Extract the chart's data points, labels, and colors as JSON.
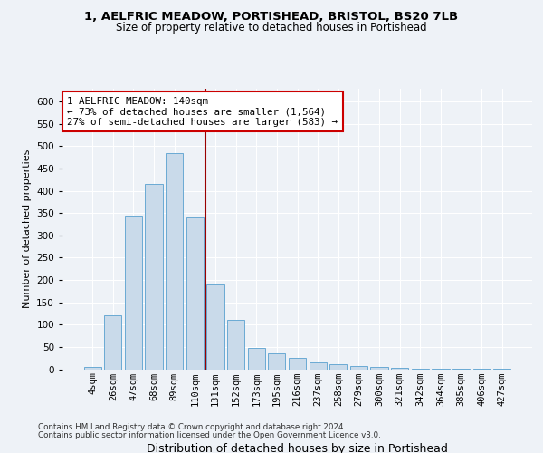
{
  "title1": "1, AELFRIC MEADOW, PORTISHEAD, BRISTOL, BS20 7LB",
  "title2": "Size of property relative to detached houses in Portishead",
  "xlabel": "Distribution of detached houses by size in Portishead",
  "ylabel": "Number of detached properties",
  "categories": [
    "4sqm",
    "26sqm",
    "47sqm",
    "68sqm",
    "89sqm",
    "110sqm",
    "131sqm",
    "152sqm",
    "173sqm",
    "195sqm",
    "216sqm",
    "237sqm",
    "258sqm",
    "279sqm",
    "300sqm",
    "321sqm",
    "342sqm",
    "364sqm",
    "385sqm",
    "406sqm",
    "427sqm"
  ],
  "values": [
    5,
    120,
    345,
    415,
    485,
    340,
    190,
    110,
    48,
    35,
    25,
    15,
    12,
    8,
    6,
    3,
    2,
    1,
    1,
    1,
    1
  ],
  "bar_color": "#c9daea",
  "bar_edge_color": "#6aaad4",
  "bar_edge_width": 0.7,
  "vline_x": 5.5,
  "annotation_text": "1 AELFRIC MEADOW: 140sqm\n← 73% of detached houses are smaller (1,564)\n27% of semi-detached houses are larger (583) →",
  "annotation_box_color": "#ffffff",
  "annotation_box_edge_color": "#cc0000",
  "footnote1": "Contains HM Land Registry data © Crown copyright and database right 2024.",
  "footnote2": "Contains public sector information licensed under the Open Government Licence v3.0.",
  "bg_color": "#eef2f7",
  "plot_bg_color": "#eef2f7",
  "ylim": [
    0,
    630
  ],
  "yticks": [
    0,
    50,
    100,
    150,
    200,
    250,
    300,
    350,
    400,
    450,
    500,
    550,
    600
  ],
  "grid_color": "#ffffff",
  "vline_color": "#990000",
  "title1_fontsize": 9.5,
  "title2_fontsize": 8.5,
  "ylabel_fontsize": 8.0,
  "xlabel_fontsize": 9.0,
  "tick_fontsize": 7.5,
  "annot_fontsize": 7.8
}
